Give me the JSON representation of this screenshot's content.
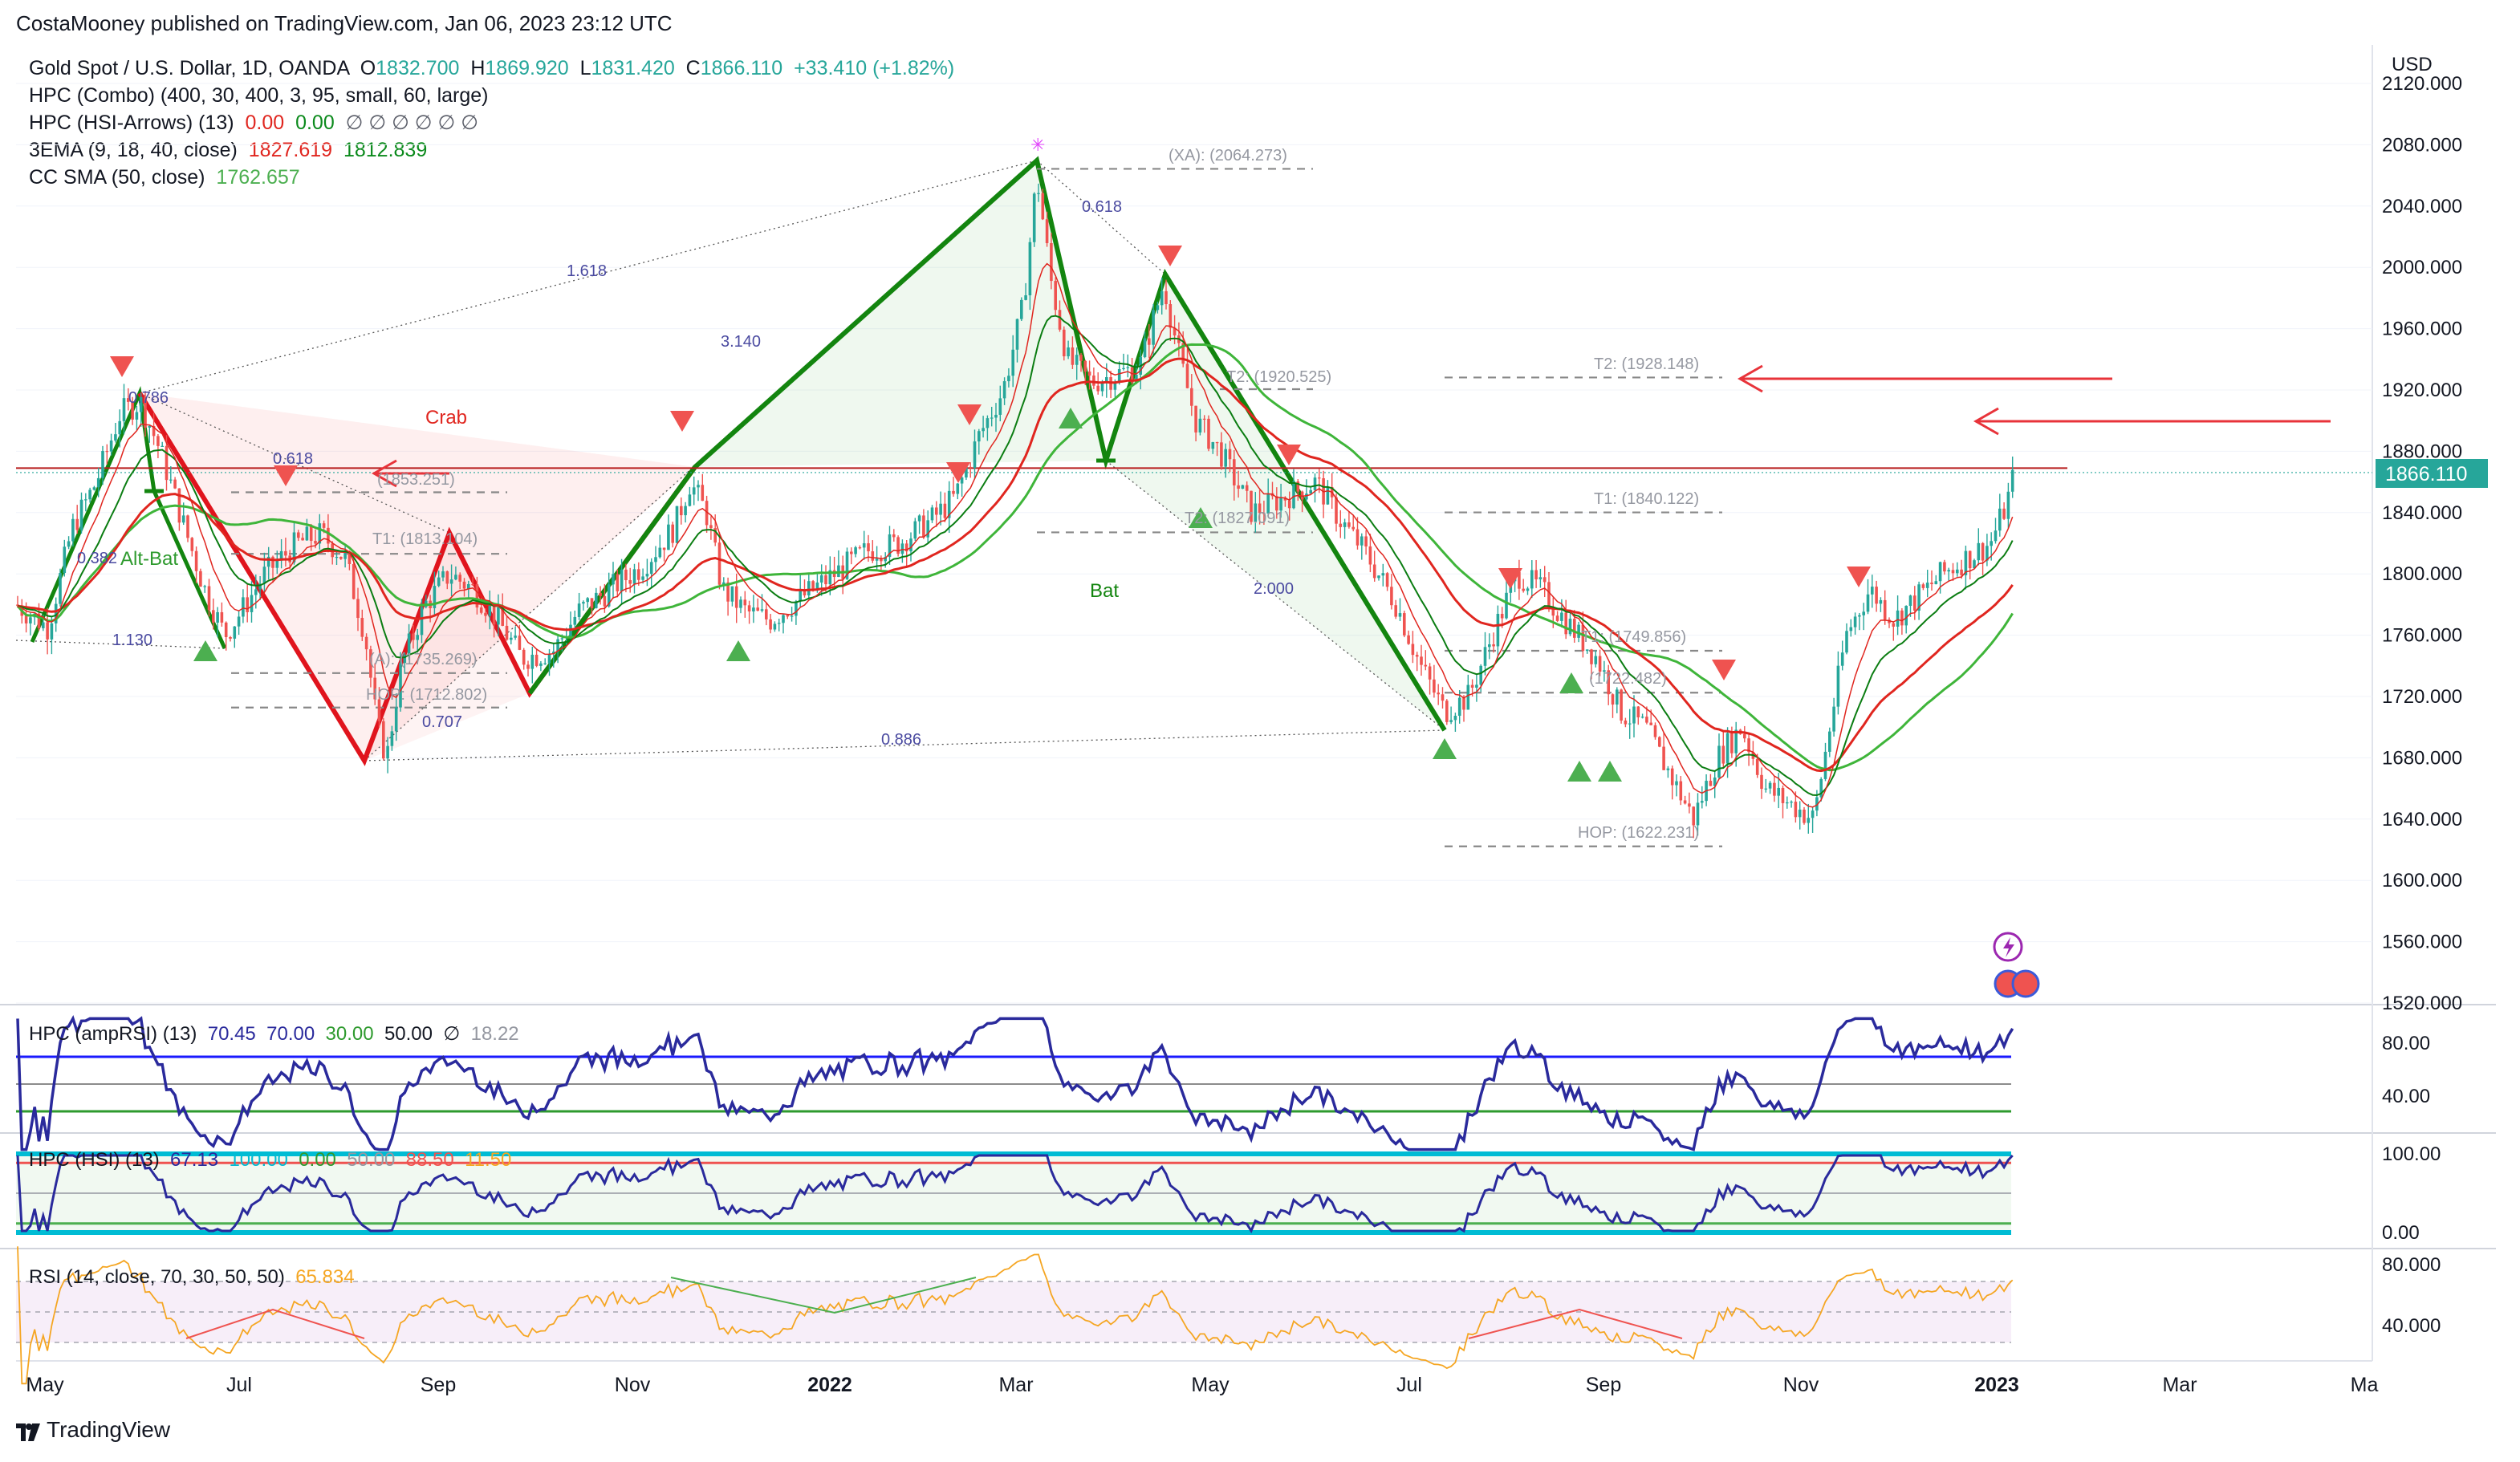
{
  "header": {
    "publisher": "CostaMooney published on TradingView.com, Jan 06, 2023 23:12 UTC"
  },
  "legend": {
    "symbol": "Gold Spot / U.S. Dollar, 1D, OANDA",
    "open_label": "O",
    "open": "1832.700",
    "high_label": "H",
    "high": "1869.920",
    "low_label": "L",
    "low": "1831.420",
    "close_label": "C",
    "close": "1866.110",
    "change": "+33.410 (+1.82%)",
    "combo": "HPC (Combo) (400, 30, 400, 3, 95, small, 60, large)",
    "arrows_name": "HPC (HSI-Arrows) (13)",
    "arrows_v1": "0.00",
    "arrows_v2": "0.00",
    "arrows_rest": "∅ ∅ ∅ ∅ ∅ ∅",
    "ema_name": "3EMA (9, 18, 40, close)",
    "ema_v1": "1827.619",
    "ema_v2": "1812.839",
    "sma_name": "CC SMA (50, close)",
    "sma_v1": "1762.657"
  },
  "price_axis": {
    "currency": "USD",
    "labels": [
      "2120.000",
      "2080.000",
      "2040.000",
      "2000.000",
      "1960.000",
      "1920.000",
      "1880.000",
      "1840.000",
      "1800.000",
      "1760.000",
      "1720.000",
      "1680.000",
      "1640.000",
      "1600.000",
      "1560.000",
      "1520.000"
    ],
    "last_price": "1866.110"
  },
  "time_axis": {
    "labels": [
      "May",
      "Jul",
      "Sep",
      "Nov",
      "2022",
      "Mar",
      "May",
      "Jul",
      "Sep",
      "Nov",
      "2023",
      "Mar",
      "Ma"
    ]
  },
  "annotations": {
    "crab": "Crab",
    "bat": "Bat",
    "alt_bat": "Alt-Bat",
    "xa": "(XA): (2064.273)",
    "t2_bat": "T2: (1920.525)",
    "t2": "T2: (1928.148)",
    "t1": "T1: (1840.122)",
    "t1_crab": "T1: (1813.104)",
    "a_crab": "(A): (1735.269)",
    "hop_crab": "HOP: (1712.802)",
    "t1_bat": "T1: (1749.856)",
    "t2_left": "(1853.251)",
    "t2_bat2": "T2: (1827.091)",
    "hop": "HOP: (1622.231)",
    "a_mid": "(1722.482)",
    "ratio_1618": "1.618",
    "ratio_3140": "3.140",
    "ratio_0618a": "0.618",
    "ratio_0618b": "0.618",
    "ratio_0786": "0.786",
    "ratio_0382": "0.382",
    "ratio_1130": "1.130",
    "ratio_0707": "0.707",
    "ratio_0886": "0.886",
    "ratio_2000": "2.000"
  },
  "osc1": {
    "name": "HPC (ampRSI) (13)",
    "v1": "70.45",
    "v2": "70.00",
    "v3": "30.00",
    "v4": "50.00",
    "v5": "∅",
    "v6": "18.22",
    "axis": [
      "80.00",
      "40.00"
    ]
  },
  "osc2": {
    "name": "HPC (HSI) (13)",
    "v1": "67.13",
    "v2": "100.00",
    "v3": "0.00",
    "v4": "50.00",
    "v5": "88.50",
    "v6": "11.50",
    "axis": [
      "100.00",
      "0.00"
    ]
  },
  "osc3": {
    "name": "RSI (14, close, 70, 30, 50, 50)",
    "v1": "65.834",
    "axis": [
      "80.000",
      "40.000"
    ]
  },
  "brand": {
    "name": "TradingView"
  },
  "colors": {
    "up": "#26a69a",
    "down": "#ef5350",
    "bull_pattern": "#13850f",
    "bear_pattern": "#e0141d",
    "ema_fast": "#e0261f",
    "ema_slow": "#0b7d12",
    "sma": "#3fb53a",
    "osc_line": "#2a2a9c",
    "rsi_line": "#f5a623",
    "target_arrow": "#e8333a"
  },
  "chart_data": {
    "type": "candlestick",
    "title": "Gold Spot / U.S. Dollar, 1D, OANDA",
    "ylabel": "USD",
    "ylim": [
      1520,
      2120
    ],
    "x": [
      "2021-05",
      "2021-06",
      "2021-07",
      "2021-08",
      "2021-09",
      "2021-10",
      "2021-11",
      "2021-12",
      "2022-01",
      "2022-02",
      "2022-03",
      "2022-04",
      "2022-05",
      "2022-06",
      "2022-07",
      "2022-08",
      "2022-09",
      "2022-10",
      "2022-11",
      "2022-12",
      "2023-01"
    ],
    "series": [
      {
        "name": "Gold Spot / U.S. Dollar",
        "values": [
          1830,
          1900,
          1790,
          1680,
          1780,
          1770,
          1860,
          1790,
          1800,
          1880,
          2060,
          1920,
          1850,
          1810,
          1710,
          1780,
          1670,
          1640,
          1760,
          1810,
          1866
        ]
      }
    ],
    "last": 1866.11
  }
}
